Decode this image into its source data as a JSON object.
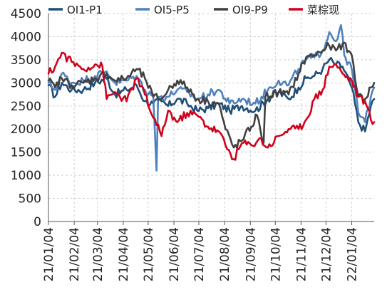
{
  "chart_data": {
    "type": "line",
    "title": "",
    "xlabel": "",
    "ylabel": "",
    "ylim": [
      0,
      4500
    ],
    "y_ticks": [
      "0",
      "500",
      "1000",
      "1500",
      "2000",
      "2500",
      "3000",
      "3500",
      "4000",
      "4500"
    ],
    "x_range": [
      "2021-01-04",
      "2022-01-31"
    ],
    "x_ticks": [
      {
        "date": "2021-01-04",
        "label": "21/01/04"
      },
      {
        "date": "2021-02-04",
        "label": "21/02/04"
      },
      {
        "date": "2021-03-04",
        "label": "21/03/04"
      },
      {
        "date": "2021-04-04",
        "label": "21/04/04"
      },
      {
        "date": "2021-05-04",
        "label": "21/05/04"
      },
      {
        "date": "2021-06-04",
        "label": "21/06/04"
      },
      {
        "date": "2021-07-04",
        "label": "21/07/04"
      },
      {
        "date": "2021-08-04",
        "label": "21/08/04"
      },
      {
        "date": "2021-09-04",
        "label": "21/09/04"
      },
      {
        "date": "2021-10-04",
        "label": "21/10/04"
      },
      {
        "date": "2021-11-04",
        "label": "21/11/04"
      },
      {
        "date": "2021-12-04",
        "label": "21/12/04"
      },
      {
        "date": "2022-01-04",
        "label": "22/01/04"
      }
    ],
    "grid": true,
    "legend_position": "top",
    "series": [
      {
        "name": "OI1-P1",
        "color": "#1f4e79",
        "points": [
          [
            "2021-01-04",
            2950
          ],
          [
            "2021-01-12",
            2700
          ],
          [
            "2021-01-20",
            3000
          ],
          [
            "2021-02-01",
            2850
          ],
          [
            "2021-02-15",
            2850
          ],
          [
            "2021-03-01",
            3000
          ],
          [
            "2021-03-15",
            3100
          ],
          [
            "2021-03-25",
            2750
          ],
          [
            "2021-04-08",
            2850
          ],
          [
            "2021-04-20",
            2950
          ],
          [
            "2021-04-30",
            2600
          ],
          [
            "2021-05-10",
            2550
          ],
          [
            "2021-05-20",
            2600
          ],
          [
            "2021-05-28",
            2500
          ],
          [
            "2021-06-08",
            2650
          ],
          [
            "2021-06-20",
            2550
          ],
          [
            "2021-07-02",
            2400
          ],
          [
            "2021-07-15",
            2450
          ],
          [
            "2021-07-28",
            2550
          ],
          [
            "2021-08-10",
            2400
          ],
          [
            "2021-08-25",
            2500
          ],
          [
            "2021-09-10",
            2400
          ],
          [
            "2021-09-25",
            2650
          ],
          [
            "2021-10-08",
            2800
          ],
          [
            "2021-10-20",
            2650
          ],
          [
            "2021-11-01",
            2900
          ],
          [
            "2021-11-10",
            3100
          ],
          [
            "2021-11-20",
            3150
          ],
          [
            "2021-11-30",
            3300
          ],
          [
            "2021-12-08",
            3500
          ],
          [
            "2021-12-16",
            3400
          ],
          [
            "2021-12-24",
            3350
          ],
          [
            "2022-01-04",
            2900
          ],
          [
            "2022-01-12",
            2150
          ],
          [
            "2022-01-20",
            1950
          ],
          [
            "2022-01-27",
            2500
          ],
          [
            "2022-01-31",
            2650
          ]
        ]
      },
      {
        "name": "OI5-P5",
        "color": "#4f81bd",
        "points": [
          [
            "2021-01-04",
            3000
          ],
          [
            "2021-01-12",
            2850
          ],
          [
            "2021-01-20",
            3200
          ],
          [
            "2021-02-01",
            3000
          ],
          [
            "2021-02-15",
            3050
          ],
          [
            "2021-03-01",
            3150
          ],
          [
            "2021-03-15",
            3250
          ],
          [
            "2021-03-25",
            3000
          ],
          [
            "2021-04-08",
            3050
          ],
          [
            "2021-04-20",
            3150
          ],
          [
            "2021-04-30",
            2850
          ],
          [
            "2021-05-10",
            2750
          ],
          [
            "2021-05-14",
            1100
          ],
          [
            "2021-05-16",
            2700
          ],
          [
            "2021-05-28",
            2700
          ],
          [
            "2021-06-08",
            2850
          ],
          [
            "2021-06-20",
            2800
          ],
          [
            "2021-07-02",
            2650
          ],
          [
            "2021-07-15",
            2750
          ],
          [
            "2021-07-28",
            2850
          ],
          [
            "2021-08-10",
            2550
          ],
          [
            "2021-08-25",
            2650
          ],
          [
            "2021-09-10",
            2550
          ],
          [
            "2021-09-25",
            2850
          ],
          [
            "2021-10-08",
            3050
          ],
          [
            "2021-10-20",
            2950
          ],
          [
            "2021-11-01",
            3300
          ],
          [
            "2021-11-10",
            3500
          ],
          [
            "2021-11-20",
            3550
          ],
          [
            "2021-11-30",
            3700
          ],
          [
            "2021-12-08",
            4100
          ],
          [
            "2021-12-16",
            3900
          ],
          [
            "2021-12-22",
            4250
          ],
          [
            "2021-12-26",
            3600
          ],
          [
            "2022-01-04",
            3300
          ],
          [
            "2022-01-12",
            2350
          ],
          [
            "2022-01-20",
            2150
          ],
          [
            "2022-01-27",
            2700
          ],
          [
            "2022-01-31",
            2900
          ]
        ]
      },
      {
        "name": "OI9-P9",
        "color": "#404040",
        "points": [
          [
            "2021-01-04",
            3050
          ],
          [
            "2021-01-12",
            2900
          ],
          [
            "2021-01-20",
            3100
          ],
          [
            "2021-02-01",
            2950
          ],
          [
            "2021-02-15",
            3000
          ],
          [
            "2021-03-01",
            3100
          ],
          [
            "2021-03-15",
            3200
          ],
          [
            "2021-03-25",
            3050
          ],
          [
            "2021-04-08",
            3100
          ],
          [
            "2021-04-20",
            3300
          ],
          [
            "2021-04-30",
            3100
          ],
          [
            "2021-05-10",
            2700
          ],
          [
            "2021-05-20",
            2650
          ],
          [
            "2021-05-28",
            2850
          ],
          [
            "2021-06-08",
            3050
          ],
          [
            "2021-06-20",
            2900
          ],
          [
            "2021-07-02",
            2650
          ],
          [
            "2021-07-15",
            2600
          ],
          [
            "2021-07-28",
            2550
          ],
          [
            "2021-08-05",
            2000
          ],
          [
            "2021-08-15",
            1600
          ],
          [
            "2021-08-25",
            1750
          ],
          [
            "2021-09-05",
            2050
          ],
          [
            "2021-09-12",
            2300
          ],
          [
            "2021-09-20",
            1700
          ],
          [
            "2021-09-22",
            2700
          ],
          [
            "2021-10-08",
            2800
          ],
          [
            "2021-10-20",
            2750
          ],
          [
            "2021-11-01",
            3200
          ],
          [
            "2021-11-10",
            3550
          ],
          [
            "2021-11-20",
            3600
          ],
          [
            "2021-11-30",
            3700
          ],
          [
            "2021-12-08",
            3800
          ],
          [
            "2021-12-16",
            3700
          ],
          [
            "2021-12-24",
            3850
          ],
          [
            "2022-01-04",
            3600
          ],
          [
            "2022-01-12",
            2700
          ],
          [
            "2022-01-20",
            2650
          ],
          [
            "2022-01-27",
            2900
          ],
          [
            "2022-01-31",
            3000
          ]
        ]
      },
      {
        "name": "菜棕现",
        "color": "#d0021b",
        "points": [
          [
            "2021-01-04",
            3200
          ],
          [
            "2021-01-12",
            3350
          ],
          [
            "2021-01-20",
            3650
          ],
          [
            "2021-02-01",
            3450
          ],
          [
            "2021-02-15",
            3300
          ],
          [
            "2021-03-01",
            3400
          ],
          [
            "2021-03-10",
            3350
          ],
          [
            "2021-03-15",
            2650
          ],
          [
            "2021-03-25",
            2800
          ],
          [
            "2021-04-08",
            2600
          ],
          [
            "2021-04-20",
            3100
          ],
          [
            "2021-04-30",
            2750
          ],
          [
            "2021-05-10",
            2250
          ],
          [
            "2021-05-20",
            1850
          ],
          [
            "2021-05-28",
            2400
          ],
          [
            "2021-06-08",
            2150
          ],
          [
            "2021-06-20",
            2350
          ],
          [
            "2021-07-02",
            2300
          ],
          [
            "2021-07-15",
            2050
          ],
          [
            "2021-07-28",
            1950
          ],
          [
            "2021-08-05",
            1650
          ],
          [
            "2021-08-15",
            1350
          ],
          [
            "2021-08-25",
            1700
          ],
          [
            "2021-09-05",
            1650
          ],
          [
            "2021-09-15",
            1800
          ],
          [
            "2021-09-25",
            1600
          ],
          [
            "2021-10-08",
            1850
          ],
          [
            "2021-10-20",
            2000
          ],
          [
            "2021-11-01",
            2000
          ],
          [
            "2021-11-10",
            2200
          ],
          [
            "2021-11-20",
            2650
          ],
          [
            "2021-11-30",
            2850
          ],
          [
            "2021-12-08",
            3350
          ],
          [
            "2021-12-16",
            3400
          ],
          [
            "2021-12-24",
            3200
          ],
          [
            "2022-01-04",
            3050
          ],
          [
            "2022-01-12",
            2700
          ],
          [
            "2022-01-20",
            2600
          ],
          [
            "2022-01-27",
            2200
          ],
          [
            "2022-01-31",
            2150
          ]
        ]
      }
    ]
  }
}
